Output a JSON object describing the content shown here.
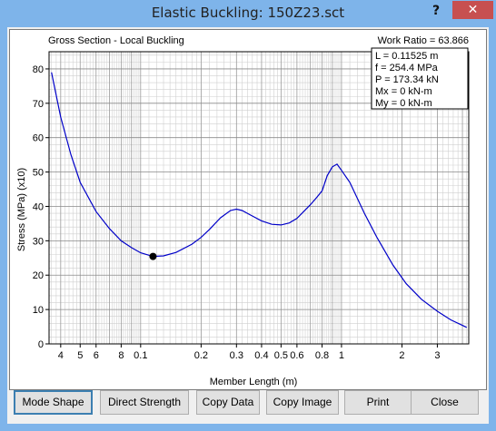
{
  "window": {
    "title": "Elastic Buckling: 150Z23.sct",
    "help_label": "?",
    "close_label": "✕"
  },
  "plot_text": {
    "section_label": "Gross Section - Local Buckling",
    "work_ratio": "Work Ratio = 63.866",
    "info_lines": [
      "L = 0.11525 m",
      "f = 254.4 MPa",
      "P = 173.34 kN",
      "Mx = 0 kN-m",
      "My = 0 kN-m"
    ]
  },
  "chart_data": {
    "type": "line",
    "xlabel": "Member Length (m)",
    "ylabel": "Stress (MPa) (x10)",
    "xscale": "log",
    "xlim": [
      0.035,
      4.3
    ],
    "ylim": [
      0,
      85
    ],
    "grid": true,
    "x_tick_labels": [
      {
        "v": 0.04,
        "t": "4"
      },
      {
        "v": 0.05,
        "t": "5"
      },
      {
        "v": 0.06,
        "t": "6"
      },
      {
        "v": 0.08,
        "t": "8"
      },
      {
        "v": 0.1,
        "t": "0.1"
      },
      {
        "v": 0.2,
        "t": "0.2"
      },
      {
        "v": 0.3,
        "t": "0.3"
      },
      {
        "v": 0.4,
        "t": "0.4"
      },
      {
        "v": 0.5,
        "t": "0.5"
      },
      {
        "v": 0.6,
        "t": "0.6"
      },
      {
        "v": 0.8,
        "t": "0.8"
      },
      {
        "v": 1,
        "t": "1"
      },
      {
        "v": 2,
        "t": "2"
      },
      {
        "v": 3,
        "t": "3"
      }
    ],
    "y_ticks": [
      0,
      10,
      20,
      30,
      40,
      50,
      60,
      70,
      80
    ],
    "series": [
      {
        "points": [
          [
            0.036,
            79
          ],
          [
            0.04,
            66
          ],
          [
            0.045,
            55
          ],
          [
            0.05,
            47
          ],
          [
            0.06,
            38.5
          ],
          [
            0.07,
            33.5
          ],
          [
            0.08,
            30
          ],
          [
            0.09,
            28
          ],
          [
            0.1,
            26.5
          ],
          [
            0.11,
            25.8
          ],
          [
            0.12,
            25.5
          ],
          [
            0.13,
            25.6
          ],
          [
            0.15,
            26.6
          ],
          [
            0.18,
            29
          ],
          [
            0.2,
            31
          ],
          [
            0.22,
            33.3
          ],
          [
            0.25,
            36.7
          ],
          [
            0.28,
            38.8
          ],
          [
            0.3,
            39.2
          ],
          [
            0.32,
            38.8
          ],
          [
            0.35,
            37.6
          ],
          [
            0.4,
            35.8
          ],
          [
            0.45,
            34.8
          ],
          [
            0.5,
            34.6
          ],
          [
            0.55,
            35.2
          ],
          [
            0.6,
            36.5
          ],
          [
            0.7,
            40.5
          ],
          [
            0.75,
            42.5
          ],
          [
            0.8,
            44.5
          ],
          [
            0.85,
            49
          ],
          [
            0.9,
            51.5
          ],
          [
            0.95,
            52.3
          ],
          [
            1.0,
            50.5
          ],
          [
            1.1,
            47
          ],
          [
            1.3,
            38
          ],
          [
            1.5,
            31
          ],
          [
            1.8,
            23
          ],
          [
            2.1,
            17.5
          ],
          [
            2.5,
            13
          ],
          [
            3.0,
            9.5
          ],
          [
            3.5,
            7
          ],
          [
            4.2,
            4.8
          ]
        ]
      }
    ],
    "marker": {
      "x": 0.11525,
      "y": 25.44
    }
  },
  "buttons": {
    "mode_shape": "Mode Shape",
    "direct_strength": "Direct Strength",
    "copy_data": "Copy Data",
    "copy_image": "Copy Image",
    "print": "Print",
    "close": "Close"
  }
}
